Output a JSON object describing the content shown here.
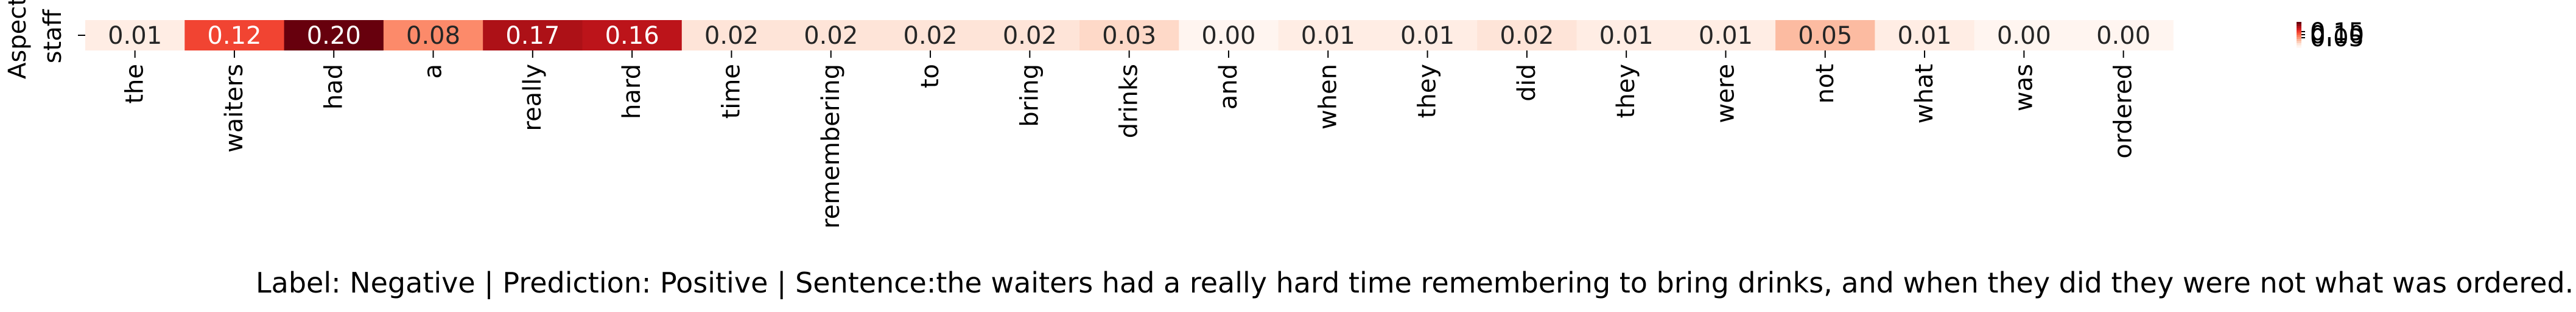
{
  "chart_data": {
    "type": "heatmap",
    "ylabel": "Aspect",
    "y_categories": [
      "staff"
    ],
    "x_categories": [
      "the",
      "waiters",
      "had",
      "a",
      "really",
      "hard",
      "time",
      "remembering",
      "to",
      "bring",
      "drinks",
      "and",
      "when",
      "they",
      "did",
      "they",
      "were",
      "not",
      "what",
      "was",
      "ordered"
    ],
    "values": [
      [
        0.01,
        0.12,
        0.2,
        0.08,
        0.17,
        0.16,
        0.02,
        0.02,
        0.02,
        0.02,
        0.03,
        0.0,
        0.01,
        0.01,
        0.02,
        0.01,
        0.01,
        0.05,
        0.01,
        0.0,
        0.0
      ]
    ],
    "value_labels": [
      "0.01",
      "0.12",
      "0.20",
      "0.08",
      "0.17",
      "0.16",
      "0.02",
      "0.02",
      "0.02",
      "0.02",
      "0.03",
      "0.00",
      "0.01",
      "0.01",
      "0.02",
      "0.01",
      "0.01",
      "0.05",
      "0.01",
      "0.00",
      "0.00"
    ],
    "colormap": "Reds",
    "vmin": 0.0,
    "vmax": 0.2,
    "colorbar_tick_labels": [
      "0.15",
      "0.10",
      "0.05"
    ],
    "caption": "Label: Negative | Prediction: Positive | Sentence:the waiters had a really hard time remembering to bring drinks, and when they did they were not what was ordered."
  }
}
